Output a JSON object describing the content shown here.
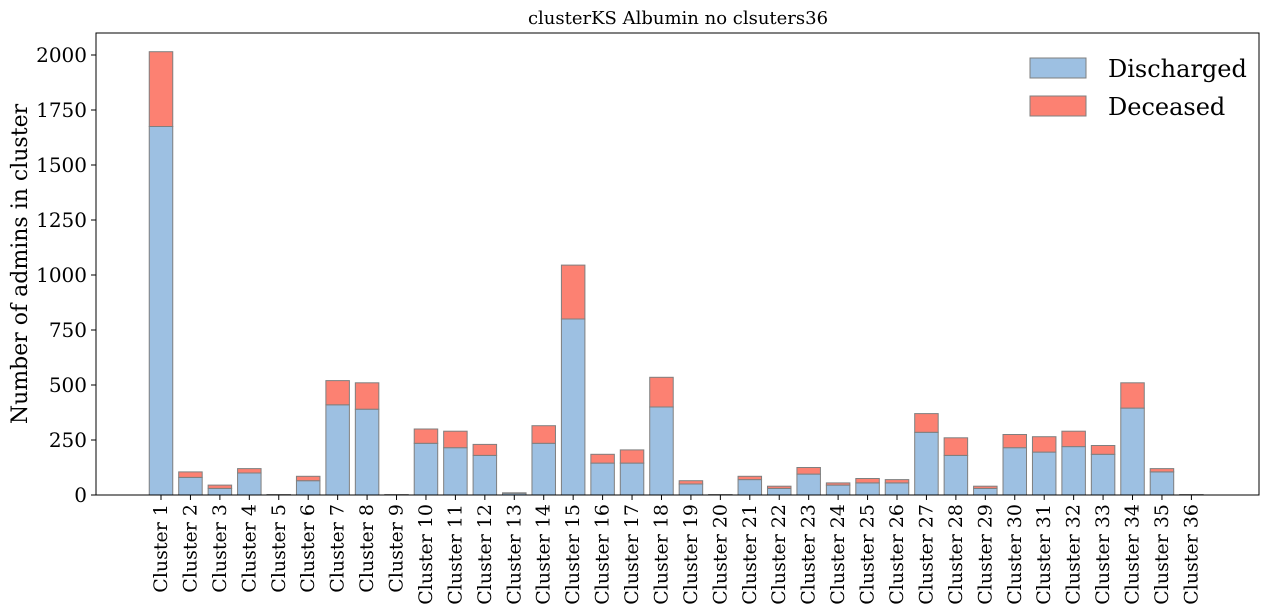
{
  "chart_data": {
    "type": "bar",
    "stacked": true,
    "title": "clusterKS Albumin no clsuters36",
    "xlabel": "",
    "ylabel": "Number of admins in cluster",
    "ylim": [
      0,
      2100
    ],
    "yticks": [
      0,
      250,
      500,
      750,
      1000,
      1250,
      1500,
      1750,
      2000
    ],
    "grid": false,
    "legend_position": "top-right",
    "categories": [
      "Cluster 1",
      "Cluster 2",
      "Cluster 3",
      "Cluster 4",
      "Cluster 5",
      "Cluster 6",
      "Cluster 7",
      "Cluster 8",
      "Cluster 9",
      "Cluster 10",
      "Cluster 11",
      "Cluster 12",
      "Cluster 13",
      "Cluster 14",
      "Cluster 15",
      "Cluster 16",
      "Cluster 17",
      "Cluster 18",
      "Cluster 19",
      "Cluster 20",
      "Cluster 21",
      "Cluster 22",
      "Cluster 23",
      "Cluster 24",
      "Cluster 25",
      "Cluster 26",
      "Cluster 27",
      "Cluster 28",
      "Cluster 29",
      "Cluster 30",
      "Cluster 31",
      "Cluster 32",
      "Cluster 33",
      "Cluster 34",
      "Cluster 35",
      "Cluster 36"
    ],
    "series": [
      {
        "name": "Discharged",
        "color": "#9dc0e2",
        "values": [
          1675,
          80,
          30,
          100,
          2,
          65,
          410,
          390,
          2,
          235,
          215,
          180,
          8,
          235,
          800,
          145,
          145,
          400,
          50,
          2,
          70,
          30,
          95,
          45,
          55,
          55,
          285,
          180,
          30,
          215,
          195,
          220,
          185,
          395,
          105,
          2
        ]
      },
      {
        "name": "Deceased",
        "color": "#fc8172",
        "values": [
          340,
          25,
          15,
          20,
          0,
          20,
          110,
          120,
          0,
          65,
          75,
          50,
          2,
          80,
          245,
          40,
          60,
          135,
          15,
          0,
          15,
          10,
          30,
          10,
          20,
          15,
          85,
          80,
          10,
          60,
          70,
          70,
          40,
          115,
          15,
          0
        ]
      }
    ]
  }
}
